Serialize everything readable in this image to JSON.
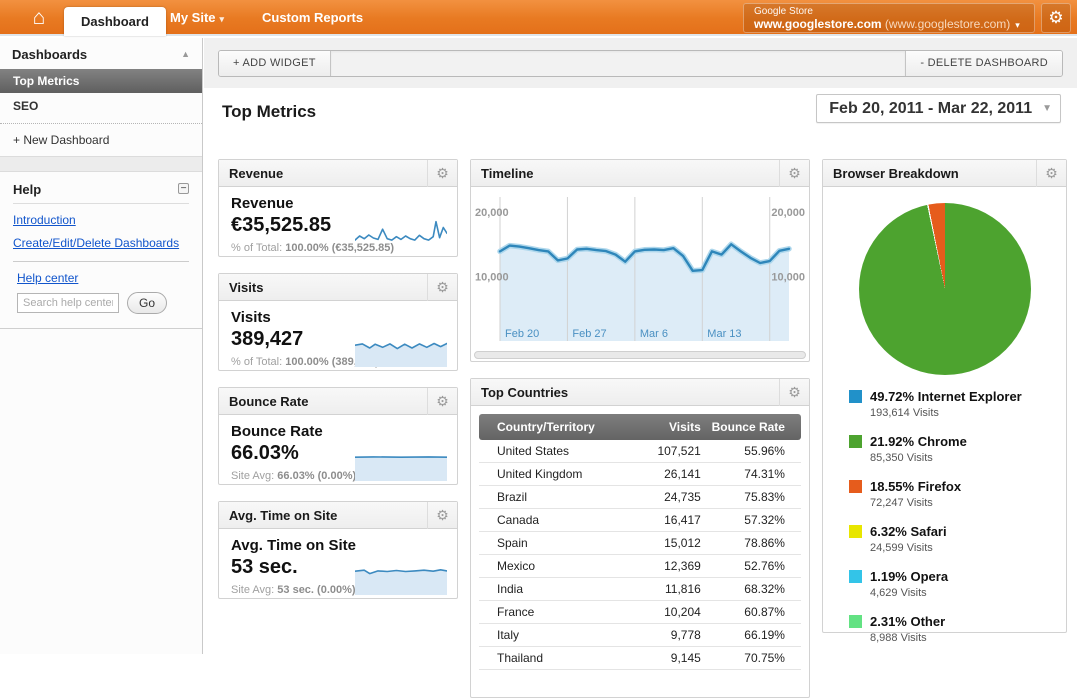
{
  "topbar": {
    "tabs": [
      {
        "label": "Dashboard",
        "active": true
      },
      {
        "label": "My Site",
        "arrow": "▾"
      },
      {
        "label": "Custom Reports"
      }
    ],
    "account": {
      "line1": "Google Store",
      "domain_bold": "www.googlestore.com",
      "domain_rest": " (www.googlestore.com)",
      "arrow": "▾"
    },
    "home_glyph": "⌂",
    "gear_glyph": "⚙"
  },
  "sidebar": {
    "dashboards": {
      "title": "Dashboards",
      "collapse_glyph": "▲",
      "items": [
        {
          "label": "Top Metrics",
          "selected": true
        },
        {
          "label": "SEO",
          "selected": false
        }
      ],
      "new_dashboard": "+ New Dashboard"
    },
    "help": {
      "title": "Help",
      "links": [
        "Introduction",
        "Create/Edit/Delete Dashboards",
        "Help center"
      ],
      "search_placeholder": "Search help center",
      "go_label": "Go"
    }
  },
  "toolbar": {
    "add_widget": "+ ADD WIDGET",
    "delete_dashboard": "- DELETE DASHBOARD"
  },
  "page": {
    "title": "Top Metrics",
    "date_range": "Feb 20, 2011 - Mar 22, 2011"
  },
  "widgets": {
    "revenue": {
      "header": "Revenue",
      "title": "Revenue",
      "value": "€35,525.85",
      "sub_label": "% of Total: ",
      "sub_value": "100.00% (€35,525.85)",
      "spark": {
        "fill": false,
        "points": [
          [
            0,
            0.62
          ],
          [
            0.05,
            0.5
          ],
          [
            0.1,
            0.58
          ],
          [
            0.15,
            0.47
          ],
          [
            0.2,
            0.56
          ],
          [
            0.25,
            0.6
          ],
          [
            0.3,
            0.3
          ],
          [
            0.35,
            0.58
          ],
          [
            0.4,
            0.62
          ],
          [
            0.45,
            0.52
          ],
          [
            0.5,
            0.6
          ],
          [
            0.55,
            0.5
          ],
          [
            0.6,
            0.58
          ],
          [
            0.65,
            0.62
          ],
          [
            0.7,
            0.48
          ],
          [
            0.75,
            0.58
          ],
          [
            0.8,
            0.62
          ],
          [
            0.85,
            0.52
          ],
          [
            0.88,
            0.08
          ],
          [
            0.92,
            0.55
          ],
          [
            0.96,
            0.25
          ],
          [
            1,
            0.42
          ]
        ]
      }
    },
    "visits": {
      "header": "Visits",
      "title": "Visits",
      "value": "389,427",
      "sub_label": "% of Total: ",
      "sub_value": "100.00% (389,427)",
      "spark": {
        "fill": true,
        "points": [
          [
            0,
            0.36
          ],
          [
            0.08,
            0.32
          ],
          [
            0.16,
            0.44
          ],
          [
            0.22,
            0.33
          ],
          [
            0.3,
            0.42
          ],
          [
            0.38,
            0.32
          ],
          [
            0.46,
            0.46
          ],
          [
            0.54,
            0.33
          ],
          [
            0.62,
            0.44
          ],
          [
            0.7,
            0.32
          ],
          [
            0.78,
            0.42
          ],
          [
            0.86,
            0.31
          ],
          [
            0.93,
            0.4
          ],
          [
            1,
            0.31
          ]
        ]
      }
    },
    "bounce": {
      "header": "Bounce Rate",
      "title": "Bounce Rate",
      "value": "66.03%",
      "sub_label": "Site Avg: ",
      "sub_value": "66.03% (0.00%)",
      "spark": {
        "fill": true,
        "points": [
          [
            0,
            0.3
          ],
          [
            0.2,
            0.29
          ],
          [
            0.5,
            0.3
          ],
          [
            0.8,
            0.29
          ],
          [
            1,
            0.3
          ]
        ]
      }
    },
    "avg_time": {
      "header": "Avg. Time on Site",
      "title": "Avg. Time on Site",
      "value": "53 sec.",
      "sub_label": "Site Avg: ",
      "sub_value": "53 sec. (0.00%)",
      "spark": {
        "fill": true,
        "points": [
          [
            0,
            0.3
          ],
          [
            0.1,
            0.27
          ],
          [
            0.16,
            0.37
          ],
          [
            0.25,
            0.29
          ],
          [
            0.35,
            0.31
          ],
          [
            0.45,
            0.28
          ],
          [
            0.55,
            0.31
          ],
          [
            0.65,
            0.29
          ],
          [
            0.75,
            0.27
          ],
          [
            0.85,
            0.3
          ],
          [
            0.93,
            0.26
          ],
          [
            1,
            0.29
          ]
        ]
      }
    },
    "timeline": {
      "header": "Timeline"
    },
    "top_countries": {
      "header": "Top Countries"
    },
    "browsers": {
      "header": "Browser Breakdown"
    }
  },
  "chart_data": [
    {
      "type": "area",
      "title": "Timeline",
      "start_label": "Feb 20",
      "values": [
        13900,
        14800,
        14650,
        14400,
        14100,
        13900,
        12500,
        12800,
        14200,
        14300,
        14100,
        13950,
        13400,
        12300,
        13900,
        14150,
        14200,
        14100,
        14400,
        13200,
        10900,
        11000,
        13900,
        13400,
        15000,
        13900,
        12900,
        12100,
        12400,
        14000,
        14300
      ],
      "ylim": [
        0,
        22500
      ],
      "yticks": [
        {
          "value": 10000,
          "label": "10,000"
        },
        {
          "value": 20000,
          "label": "20,000"
        }
      ],
      "xticks": [
        {
          "day": 0,
          "label": "Feb 20"
        },
        {
          "day": 7,
          "label": "Feb 27"
        },
        {
          "day": 14,
          "label": "Mar 6"
        },
        {
          "day": 21,
          "label": "Mar 13"
        },
        {
          "day": 28,
          "label": ""
        }
      ],
      "line_color": "#2e86ba",
      "halo_color": "#aed7ec",
      "fill_color": "#ddecf7",
      "grid_color": "#d2d2d2",
      "ytick_color": "#999999",
      "xtick_color": "#4a90c2"
    },
    {
      "type": "pie",
      "title": "Browser Breakdown",
      "legend": [
        {
          "pct": "49.72%",
          "label": "Internet Explorer",
          "visits": "193,614 Visits",
          "color": "#2191c9",
          "value": 49.72
        },
        {
          "pct": "21.92%",
          "label": "Chrome",
          "visits": "85,350 Visits",
          "color": "#4da32f",
          "value": 21.92
        },
        {
          "pct": "18.55%",
          "label": "Firefox",
          "visits": "72,247 Visits",
          "color": "#e65c1c",
          "value": 18.55
        },
        {
          "pct": "6.32%",
          "label": "Safari",
          "visits": "24,599 Visits",
          "color": "#e8e600",
          "value": 6.32
        },
        {
          "pct": "1.19%",
          "label": "Opera",
          "visits": "4,629 Visits",
          "color": "#33c4e8",
          "value": 1.19
        },
        {
          "pct": "2.31%",
          "label": "Other",
          "visits": "8,988 Visits",
          "color": "#63e283",
          "value": 2.31
        }
      ],
      "clockwise_order": [
        1,
        2,
        3,
        4,
        5,
        0
      ],
      "start_angle_deg": 270
    },
    {
      "type": "table",
      "title": "Top Countries",
      "columns": [
        "Country/Territory",
        "Visits",
        "Bounce Rate"
      ],
      "rows": [
        [
          "United States",
          "107,521",
          "55.96%"
        ],
        [
          "United Kingdom",
          "26,141",
          "74.31%"
        ],
        [
          "Brazil",
          "24,735",
          "75.83%"
        ],
        [
          "Canada",
          "16,417",
          "57.32%"
        ],
        [
          "Spain",
          "15,012",
          "78.86%"
        ],
        [
          "Mexico",
          "12,369",
          "52.76%"
        ],
        [
          "India",
          "11,816",
          "68.32%"
        ],
        [
          "France",
          "10,204",
          "60.87%"
        ],
        [
          "Italy",
          "9,778",
          "66.19%"
        ],
        [
          "Thailand",
          "9,145",
          "70.75%"
        ]
      ]
    }
  ]
}
